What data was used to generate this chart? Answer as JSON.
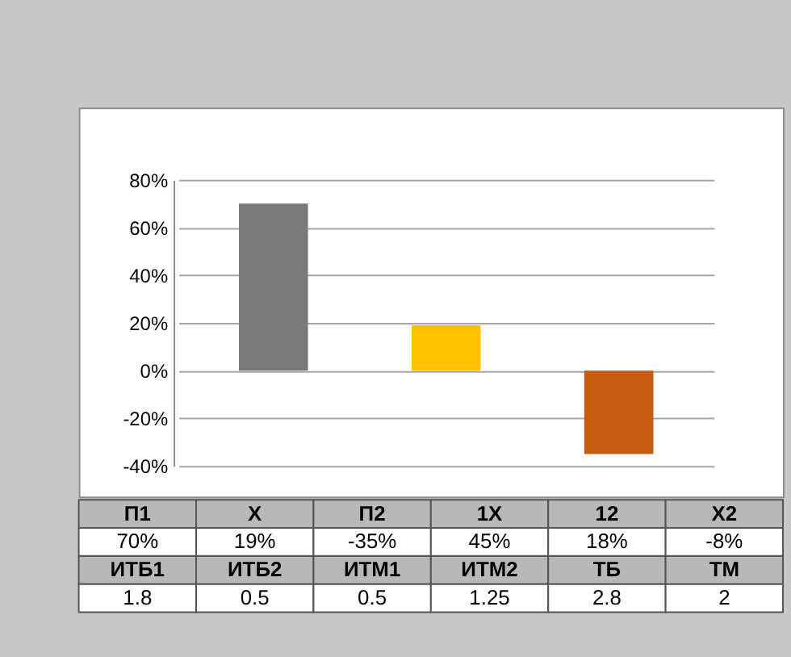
{
  "chart_data": {
    "type": "bar",
    "categories": [
      null,
      null,
      null
    ],
    "values": [
      70,
      19,
      -35
    ],
    "colors": [
      "#7a7a7a",
      "#ffc000",
      "#c55a11"
    ],
    "ylim": [
      -40,
      80
    ],
    "yticks": [
      {
        "value": -40,
        "label": "-40%"
      },
      {
        "value": -20,
        "label": "-20%"
      },
      {
        "value": 0,
        "label": "0%"
      },
      {
        "value": 20,
        "label": "20%"
      },
      {
        "value": 40,
        "label": "40%"
      },
      {
        "value": 60,
        "label": "60%"
      },
      {
        "value": 80,
        "label": "80%"
      }
    ],
    "grid": "y",
    "annotations": [
      "П1",
      "X",
      "П2",
      "1X",
      "12",
      "X2",
      "70%",
      "19%",
      "-35%",
      "45%",
      "18%",
      "-8%",
      "ИТБ1",
      "ИТБ2",
      "ИТМ1",
      "ИТМ2",
      "ТБ",
      "ТМ",
      "1.8",
      "0.5",
      "0.5",
      "1.25",
      "2.8",
      "2"
    ]
  }
}
